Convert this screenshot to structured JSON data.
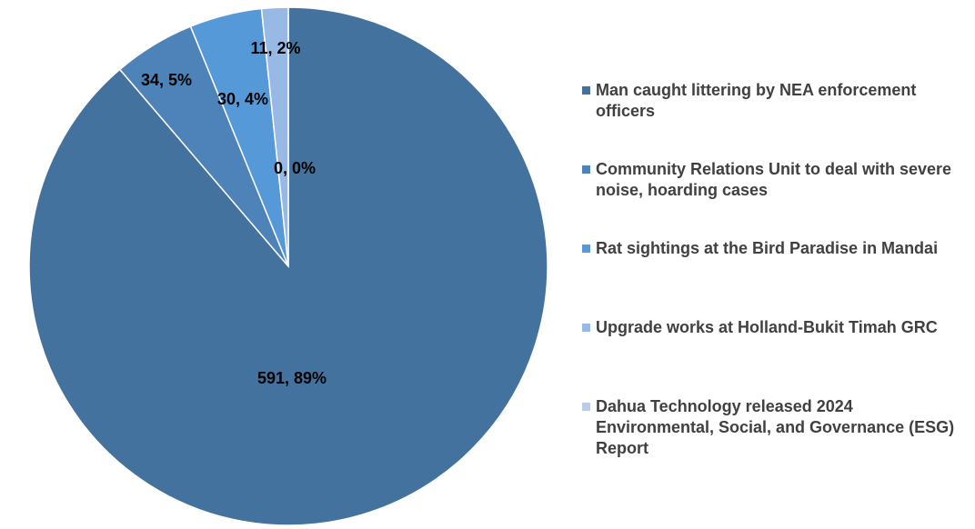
{
  "chart_data": {
    "type": "pie",
    "categories": [
      "Man caught littering by NEA enforcement officers",
      "Community Relations Unit to deal with severe noise, hoarding cases",
      "Rat sightings at the Bird Paradise in Mandai",
      "Upgrade works at Holland-Bukit Timah GRC",
      "Dahua Technology released 2024 Environmental, Social, and Governance (ESG) Report"
    ],
    "values": [
      591,
      34,
      30,
      11,
      0
    ],
    "data_labels": [
      "591, 89%",
      "34, 5%",
      "30, 4%",
      "11, 2%",
      "0, 0%"
    ],
    "colors": [
      "#44729e",
      "#4d83b8",
      "#5599d9",
      "#98b9e3",
      "#b7cdea"
    ],
    "legend_position": "right"
  }
}
